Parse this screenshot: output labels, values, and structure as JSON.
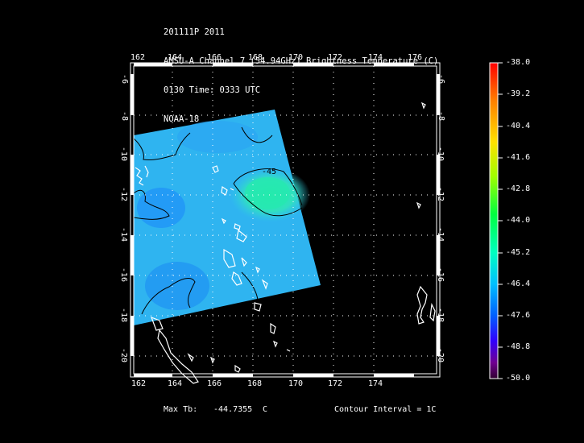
{
  "header": {
    "line1": "201111P 2011",
    "line2": "AMSU-A Channel 7 (54.94GHz) Brightness Temperature (C)",
    "line3": "0130 Time: 0333 UTC",
    "line4": "NOAA-18"
  },
  "map": {
    "lon_ticks": [
      "162",
      "164",
      "166",
      "168",
      "170",
      "172",
      "174",
      "176"
    ],
    "lat_ticks": [
      "-8",
      "-10",
      "-12",
      "-14",
      "-16",
      "-18",
      "-20"
    ],
    "top_right_lat_tick": "-6",
    "contour_label": "-45"
  },
  "colorbar": {
    "ticks": [
      "-38.0",
      "-39.2",
      "-40.4",
      "-41.6",
      "-42.8",
      "-44.0",
      "-45.2",
      "-46.4",
      "-47.6",
      "-48.8",
      "-50.0"
    ],
    "colors": [
      "#ff0000",
      "#ff8000",
      "#ffe000",
      "#a0ff00",
      "#00ff40",
      "#00ffc0",
      "#00c0ff",
      "#0060ff",
      "#3000ff",
      "#700090",
      "#300030"
    ]
  },
  "footer": {
    "max_label": "Max Tb:",
    "max_value": "-44.7355",
    "max_unit": "C",
    "contour_text": "Contour Interval = 1C"
  }
}
